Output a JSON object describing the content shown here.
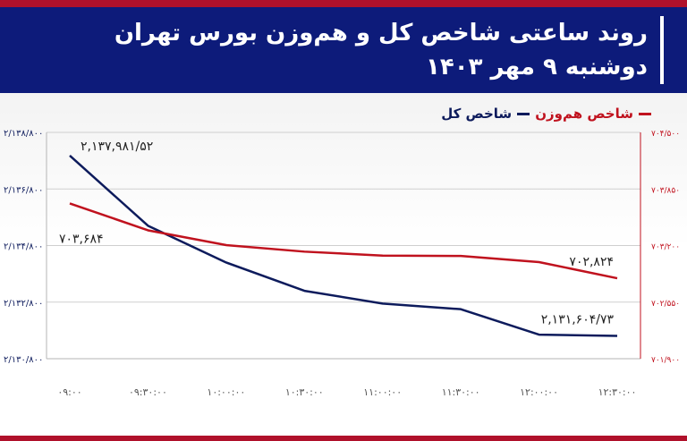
{
  "header": {
    "title": "روند ساعتی شاخص کل و هم‌وزن بورس تهران",
    "subtitle": "دوشنبه ۹ مهر ۱۴۰۳"
  },
  "colors": {
    "header_bg": "#0d1b7a",
    "accent_red": "#b0112b",
    "series_total": "#0d1b5c",
    "series_equal": "#c0121e"
  },
  "chart_data": {
    "type": "line",
    "x": [
      "۰۹:۰۰",
      "۰۹:۳۰:۰۰",
      "۱۰:۰۰:۰۰",
      "۱۰:۳۰:۰۰",
      "۱۱:۰۰:۰۰",
      "۱۱:۳۰:۰۰",
      "۱۲:۰۰:۰۰",
      "۱۲:۳۰:۰۰"
    ],
    "x_positions_hours": [
      9.0,
      9.5,
      10.0,
      10.5,
      11.0,
      11.5,
      12.0,
      12.5
    ],
    "series": [
      {
        "name": "شاخص کل",
        "axis": "left",
        "x": [
          9.0,
          9.5,
          10.0,
          10.5,
          11.0,
          11.5,
          12.0,
          12.5
        ],
        "values": [
          2137981.52,
          2135500,
          2134200,
          2133200,
          2132750,
          2132550,
          2131650,
          2131604.73
        ]
      },
      {
        "name": "شاخص هم‌وزن",
        "axis": "right",
        "x": [
          9.0,
          9.5,
          10.0,
          10.5,
          11.0,
          11.5,
          12.0,
          12.5
        ],
        "values": [
          703684,
          703375,
          703205,
          703130,
          703085,
          703080,
          703010,
          702824
        ]
      }
    ],
    "annotations": [
      {
        "text": "۲,۱۳۷,۹۸۱/۵۲",
        "series": 0,
        "point": 0
      },
      {
        "text": "۷۰۳,۶۸۴",
        "series": 1,
        "point": 0
      },
      {
        "text": "۷۰۲,۸۲۴",
        "series": 1,
        "point": 7
      },
      {
        "text": "۲,۱۳۱,۶۰۴/۷۳",
        "series": 0,
        "point": 7
      }
    ],
    "y_left": {
      "ylim": [
        2130800,
        2138800
      ],
      "ticks": [
        2130800,
        2132800,
        2134800,
        2136800,
        2138800
      ],
      "tick_labels": [
        "۲/۱۳۰/۸۰۰",
        "۲/۱۳۲/۸۰۰",
        "۲/۱۳۴/۸۰۰",
        "۲/۱۳۶/۸۰۰",
        "۲/۱۳۸/۸۰۰"
      ]
    },
    "y_right": {
      "ylim": [
        701900,
        704500
      ],
      "ticks": [
        701900,
        702550,
        703200,
        703850,
        704500
      ],
      "tick_labels": [
        "۷۰۱/۹۰۰",
        "۷۰۲/۵۵۰",
        "۷۰۳/۲۰۰",
        "۷۰۳/۸۵۰",
        "۷۰۴/۵۰۰"
      ]
    },
    "grid": true,
    "legend": "top-right"
  }
}
